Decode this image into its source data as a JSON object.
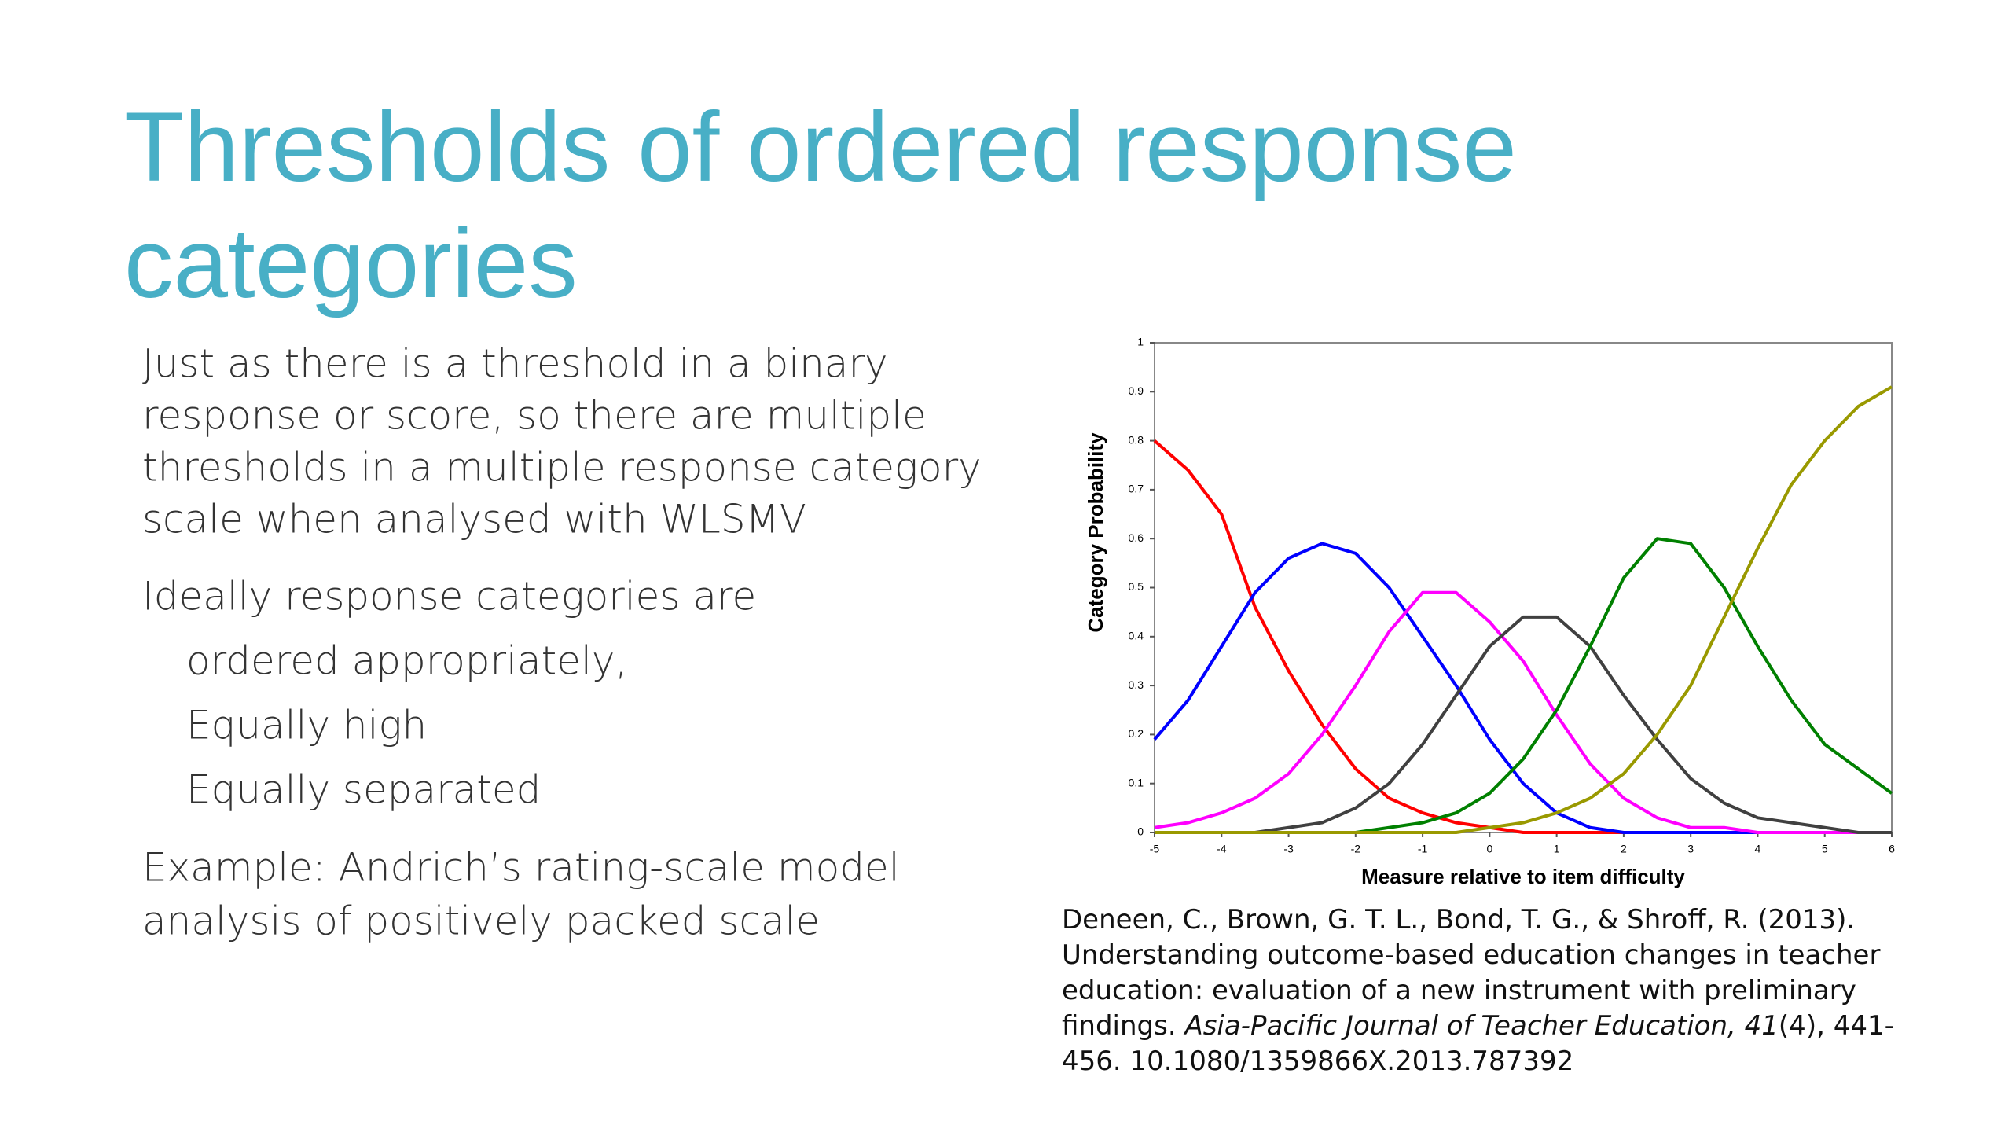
{
  "title": [
    "Thresholds of ordered response",
    "categories"
  ],
  "body": {
    "paragraph1": [
      "Just as there is a threshold in a binary",
      "response or score, so there are multiple",
      "thresholds in a multiple response category",
      "scale when analysed with WLSMV"
    ],
    "paragraph2": "Ideally response categories are",
    "subitems": [
      "ordered appropriately,",
      "Equally high",
      "Equally separated"
    ],
    "paragraph3": [
      "Example: Andrich’s rating-scale model",
      "analysis of positively packed scale"
    ]
  },
  "citation": [
    [
      {
        "text": "Deneen, C., Brown, G. T. L., Bond, T. G., & Shroff, R. (2013).",
        "italic": false
      }
    ],
    [
      {
        "text": "Understanding outcome-based education changes in teacher",
        "italic": false
      }
    ],
    [
      {
        "text": "education: evaluation of a new instrument with preliminary",
        "italic": false
      }
    ],
    [
      {
        "text": "findings. ",
        "italic": false
      },
      {
        "text": "Asia-Pacific Journal of Teacher Education, 41",
        "italic": true
      },
      {
        "text": "(4), 441-",
        "italic": false
      }
    ],
    [
      {
        "text": "456. 10.1080/1359866X.2013.787392",
        "italic": false
      }
    ]
  ],
  "chart_data": {
    "type": "line",
    "x_label": "Measure relative to item difficulty",
    "y_label": "Category Probability",
    "x": [
      -5,
      -4.5,
      -4,
      -3.5,
      -3,
      -2.5,
      -2,
      -1.5,
      -1,
      -0.5,
      0,
      0.5,
      1,
      1.5,
      2,
      2.5,
      3,
      3.5,
      4,
      4.5,
      5,
      5.5,
      6
    ],
    "series": [
      {
        "color": "#ff0000",
        "values": [
          0.8,
          0.74,
          0.65,
          0.46,
          0.33,
          0.22,
          0.13,
          0.07,
          0.04,
          0.02,
          0.01,
          0,
          0,
          0,
          0,
          0,
          0,
          0,
          0,
          0,
          0,
          0,
          0
        ]
      },
      {
        "color": "#0000ff",
        "values": [
          0.19,
          0.27,
          0.38,
          0.49,
          0.56,
          0.59,
          0.57,
          0.5,
          0.4,
          0.3,
          0.19,
          0.1,
          0.04,
          0.01,
          0,
          0,
          0,
          0,
          0,
          0,
          0,
          0,
          0
        ]
      },
      {
        "color": "#ff00ff",
        "values": [
          0.01,
          0.02,
          0.04,
          0.07,
          0.12,
          0.2,
          0.3,
          0.41,
          0.49,
          0.49,
          0.43,
          0.35,
          0.24,
          0.14,
          0.07,
          0.03,
          0.01,
          0.01,
          0,
          0,
          0,
          0,
          0
        ]
      },
      {
        "color": "#404040",
        "values": [
          0,
          0,
          0,
          0,
          0.01,
          0.02,
          0.05,
          0.1,
          0.18,
          0.28,
          0.38,
          0.44,
          0.44,
          0.38,
          0.28,
          0.19,
          0.11,
          0.06,
          0.03,
          0.02,
          0.01,
          0,
          0
        ]
      },
      {
        "color": "#008000",
        "values": [
          0,
          0,
          0,
          0,
          0,
          0,
          0,
          0.01,
          0.02,
          0.04,
          0.08,
          0.15,
          0.25,
          0.38,
          0.52,
          0.6,
          0.59,
          0.5,
          0.38,
          0.27,
          0.18,
          0.13,
          0.08
        ]
      },
      {
        "color": "#999900",
        "values": [
          0,
          0,
          0,
          0,
          0,
          0,
          0,
          0,
          0,
          0,
          0.01,
          0.02,
          0.04,
          0.07,
          0.12,
          0.2,
          0.3,
          0.44,
          0.58,
          0.71,
          0.8,
          0.87,
          0.91
        ]
      }
    ],
    "xlim": [
      -5,
      6
    ],
    "xticks": [
      -5,
      -4,
      -3,
      -2,
      -1,
      0,
      1,
      2,
      3,
      4,
      5,
      6
    ],
    "ylim": [
      0,
      1
    ],
    "yticks": [
      0,
      0.1,
      0.2,
      0.3,
      0.4,
      0.5,
      0.6,
      0.7,
      0.8,
      0.9,
      1
    ]
  }
}
